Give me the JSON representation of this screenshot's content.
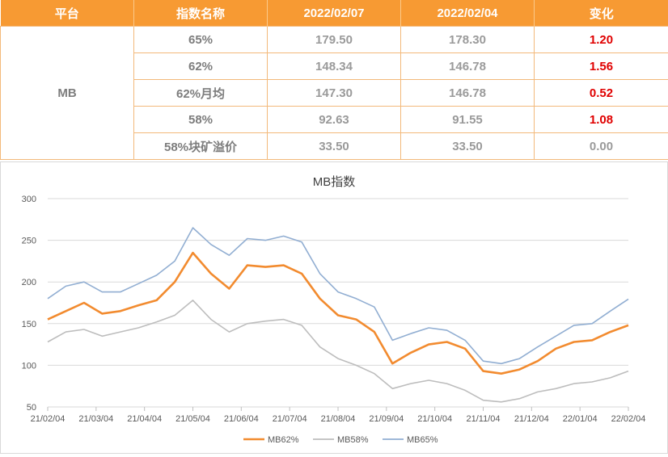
{
  "table": {
    "headers": [
      "平台",
      "指数名称",
      "2022/02/07",
      "2022/02/04",
      "变化"
    ],
    "platform": "MB",
    "rows": [
      {
        "name": "65%",
        "v1": "179.50",
        "v2": "178.30",
        "change": "1.20",
        "status": "up"
      },
      {
        "name": "62%",
        "v1": "148.34",
        "v2": "146.78",
        "change": "1.56",
        "status": "up"
      },
      {
        "name": "62%月均",
        "v1": "147.30",
        "v2": "146.78",
        "change": "0.52",
        "status": "up"
      },
      {
        "name": "58%",
        "v1": "92.63",
        "v2": "91.55",
        "change": "1.08",
        "status": "up"
      },
      {
        "name": "58%块矿溢价",
        "v1": "33.50",
        "v2": "33.50",
        "change": "0.00",
        "status": "flat"
      }
    ]
  },
  "colors": {
    "header_bg": "#f79a33",
    "up": "#e00000",
    "mb62": "#f28b2f",
    "mb58": "#bdbdbd",
    "mb65": "#91aed2"
  },
  "chart_data": {
    "type": "line",
    "title": "MB指数",
    "xlabel": "",
    "ylabel": "",
    "ylim": [
      50,
      300
    ],
    "yticks": [
      50,
      100,
      150,
      200,
      250,
      300
    ],
    "xticks": [
      "21/02/04",
      "21/03/04",
      "21/04/04",
      "21/05/04",
      "21/06/04",
      "21/07/04",
      "21/08/04",
      "21/09/04",
      "21/10/04",
      "21/11/04",
      "21/12/04",
      "22/01/04",
      "22/02/04"
    ],
    "grid": true,
    "legend": "bottom",
    "x": [
      "21/02/04",
      "21/02/15",
      "21/03/04",
      "21/03/15",
      "21/04/04",
      "21/04/15",
      "21/04/25",
      "21/05/04",
      "21/05/12",
      "21/05/20",
      "21/06/04",
      "21/06/15",
      "21/07/04",
      "21/07/15",
      "21/07/25",
      "21/08/04",
      "21/08/15",
      "21/08/25",
      "21/09/04",
      "21/09/12",
      "21/09/20",
      "21/10/04",
      "21/10/15",
      "21/10/25",
      "21/11/04",
      "21/11/15",
      "21/11/25",
      "21/12/04",
      "21/12/15",
      "22/01/04",
      "22/01/15",
      "22/01/25",
      "22/02/07"
    ],
    "series": [
      {
        "name": "MB62%",
        "values": [
          155,
          165,
          175,
          162,
          165,
          172,
          178,
          200,
          235,
          210,
          192,
          220,
          218,
          220,
          210,
          180,
          160,
          155,
          140,
          102,
          115,
          125,
          128,
          120,
          93,
          90,
          95,
          105,
          120,
          128,
          130,
          140,
          148
        ]
      },
      {
        "name": "MB58%",
        "values": [
          128,
          140,
          143,
          135,
          140,
          145,
          152,
          160,
          178,
          155,
          140,
          150,
          153,
          155,
          148,
          122,
          108,
          100,
          90,
          72,
          78,
          82,
          78,
          70,
          58,
          56,
          60,
          68,
          72,
          78,
          80,
          85,
          93
        ]
      },
      {
        "name": "MB65%",
        "values": [
          180,
          195,
          200,
          188,
          188,
          198,
          208,
          225,
          265,
          245,
          232,
          252,
          250,
          255,
          248,
          210,
          188,
          180,
          170,
          130,
          138,
          145,
          142,
          130,
          105,
          102,
          108,
          122,
          135,
          148,
          150,
          165,
          179.5
        ]
      }
    ]
  }
}
